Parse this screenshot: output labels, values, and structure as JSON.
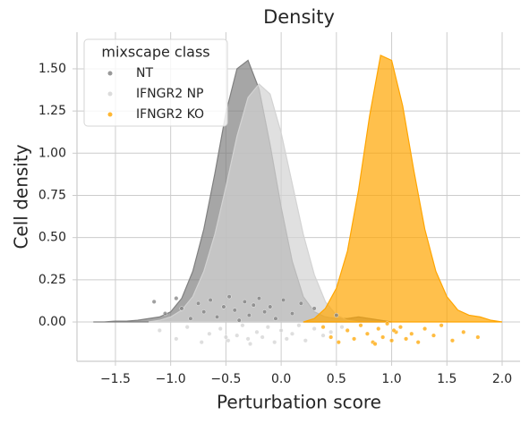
{
  "chart_data": {
    "type": "density",
    "title": "Density",
    "x_label": "Perturbation score",
    "y_label": "Cell density",
    "xlim": [
      -1.848,
      2.162
    ],
    "ylim": [
      -0.233,
      1.717
    ],
    "xticks": [
      {
        "value": -1.5,
        "label": "−1.5"
      },
      {
        "value": -1.0,
        "label": "−1.0"
      },
      {
        "value": -0.5,
        "label": "−0.5"
      },
      {
        "value": 0.0,
        "label": "0.0"
      },
      0.5,
      {
        "value": 1.0,
        "label": "1.0"
      },
      1.5,
      {
        "value": 2.0,
        "label": "2.0"
      }
    ],
    "yticks": [
      {
        "value": 0,
        "label": "0.00"
      },
      0.25,
      {
        "value": 0.5,
        "label": "0.50"
      },
      0.75,
      {
        "value": 1.0,
        "label": "1.00"
      },
      1.25,
      {
        "value": 1.5,
        "label": "1.50"
      }
    ],
    "grid": true,
    "legend_title": "mixscape class",
    "legend_position": "upper left",
    "series": [
      {
        "name": "NT",
        "color": "#808080",
        "x": [
          -1.7,
          -1.6,
          -1.5,
          -1.4,
          -1.3,
          -1.2,
          -1.1,
          -1.0,
          -0.9,
          -0.8,
          -0.7,
          -0.6,
          -0.5,
          -0.4,
          -0.3,
          -0.2,
          -0.1,
          0.0,
          0.1,
          0.2,
          0.3,
          0.4,
          0.5,
          0.6,
          0.7,
          0.8,
          0.9,
          1.0
        ],
        "values": [
          0,
          0,
          0.005,
          0.005,
          0.01,
          0.02,
          0.03,
          0.06,
          0.14,
          0.3,
          0.55,
          0.88,
          1.24,
          1.5,
          1.55,
          1.38,
          1.05,
          0.68,
          0.36,
          0.15,
          0.06,
          0.03,
          0.02,
          0.02,
          0.03,
          0.02,
          0.01,
          0
        ],
        "points_x": [
          -1.15,
          -1.05,
          -0.95,
          -0.9,
          -0.82,
          -0.75,
          -0.7,
          -0.64,
          -0.58,
          -0.52,
          -0.47,
          -0.42,
          -0.38,
          -0.33,
          -0.29,
          -0.25,
          -0.2,
          -0.15,
          -0.1,
          -0.05,
          0.02,
          0.1,
          0.18,
          0.3,
          0.5
        ],
        "points_y": [
          0.12,
          0.05,
          0.14,
          0.08,
          0.02,
          0.11,
          0.06,
          0.13,
          0.03,
          0.09,
          0.15,
          0.07,
          0.01,
          0.12,
          0.04,
          0.1,
          0.14,
          0.06,
          0.09,
          0.02,
          0.13,
          0.05,
          0.11,
          0.08,
          0.04
        ]
      },
      {
        "name": "IFNGR2 NP",
        "color": "#d3d3d3",
        "x": [
          -1.2,
          -1.1,
          -1.0,
          -0.9,
          -0.8,
          -0.7,
          -0.6,
          -0.5,
          -0.4,
          -0.3,
          -0.2,
          -0.1,
          0.0,
          0.1,
          0.2,
          0.3,
          0.4,
          0.5,
          0.6,
          0.7
        ],
        "values": [
          0,
          0.01,
          0.03,
          0.07,
          0.15,
          0.3,
          0.52,
          0.8,
          1.1,
          1.33,
          1.41,
          1.35,
          1.12,
          0.82,
          0.52,
          0.28,
          0.12,
          0.04,
          0.01,
          0
        ],
        "points_x": [
          -1.1,
          -0.95,
          -0.85,
          -0.72,
          -0.65,
          -0.55,
          -0.48,
          -0.4,
          -0.35,
          -0.28,
          -0.22,
          -0.17,
          -0.12,
          -0.06,
          0.0,
          0.05,
          0.1,
          0.16,
          0.22,
          0.3,
          0.38,
          0.45,
          0.55,
          -0.3,
          -0.5
        ],
        "points_y": [
          -0.05,
          -0.1,
          -0.03,
          -0.12,
          -0.07,
          -0.04,
          -0.11,
          -0.08,
          -0.02,
          -0.13,
          -0.06,
          -0.09,
          -0.03,
          -0.12,
          -0.05,
          -0.1,
          -0.07,
          -0.02,
          -0.11,
          -0.04,
          -0.08,
          -0.06,
          -0.03,
          -0.1,
          -0.09
        ]
      },
      {
        "name": "IFNGR2 KO",
        "color": "#ffa500",
        "x": [
          0.2,
          0.3,
          0.4,
          0.5,
          0.6,
          0.7,
          0.8,
          0.9,
          1.0,
          1.1,
          1.2,
          1.3,
          1.4,
          1.5,
          1.6,
          1.7,
          1.8,
          1.9,
          2.0
        ],
        "values": [
          0,
          0.02,
          0.08,
          0.2,
          0.42,
          0.78,
          1.22,
          1.58,
          1.55,
          1.28,
          0.9,
          0.55,
          0.3,
          0.15,
          0.07,
          0.04,
          0.03,
          0.01,
          0
        ],
        "points_x": [
          0.38,
          0.45,
          0.52,
          0.6,
          0.66,
          0.72,
          0.78,
          0.83,
          0.88,
          0.92,
          0.96,
          1.0,
          1.04,
          1.08,
          1.13,
          1.18,
          1.24,
          1.3,
          1.38,
          1.45,
          1.55,
          1.65,
          1.78,
          0.85,
          1.02
        ],
        "points_y": [
          -0.03,
          -0.09,
          -0.12,
          -0.05,
          -0.1,
          -0.02,
          -0.07,
          -0.12,
          -0.04,
          -0.09,
          -0.01,
          -0.11,
          -0.06,
          -0.03,
          -0.1,
          -0.07,
          -0.12,
          -0.04,
          -0.08,
          -0.02,
          -0.11,
          -0.06,
          -0.09,
          -0.13,
          -0.05
        ]
      }
    ]
  }
}
